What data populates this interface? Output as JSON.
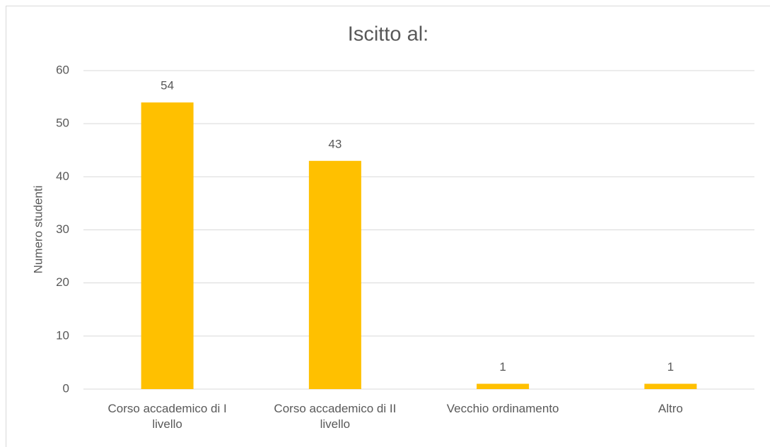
{
  "chart_data": {
    "type": "bar",
    "title": "Iscitto al:",
    "y_label": "Numero studenti",
    "categories": [
      "Corso accademico di I livello",
      "Corso accademico di II livello",
      "Vecchio ordinamento",
      "Altro"
    ],
    "values": [
      54,
      43,
      1,
      1
    ],
    "color": "#ffc000",
    "ylim": [
      0,
      60
    ],
    "yticks": [
      0,
      10,
      20,
      30,
      40,
      50,
      60
    ],
    "grid": true
  }
}
